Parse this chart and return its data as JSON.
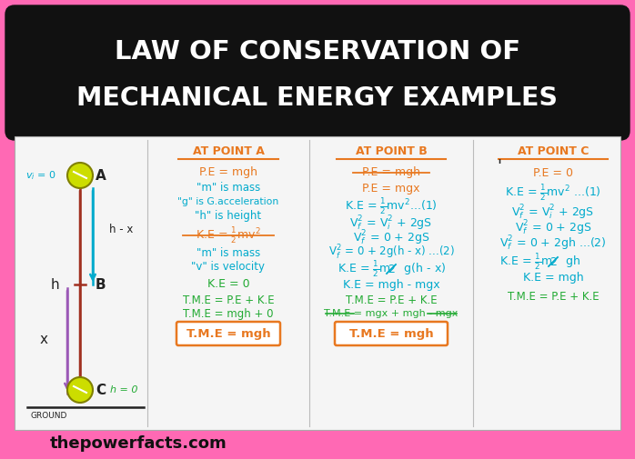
{
  "bg_color": "#ff69b4",
  "title_bg": "#111111",
  "title_line1": "LAW OF CONSERVATION OF",
  "title_line2": "MECHANICAL ENERGY EXAMPLES",
  "title_color": "#ffffff",
  "content_bg": "#f5f5f5",
  "watermark": "thepowerfacts.com",
  "orange": "#e87820",
  "green": "#22aa33",
  "cyan": "#00aacc",
  "purple": "#9b59b6",
  "red": "#c0392b",
  "dark_red": "#a03020",
  "ball_green": "#ccdd00",
  "dark": "#222222",
  "col_divider": "#bbbbbb",
  "fig_w": 6.98,
  "fig_h": 5.05,
  "dpi": 100
}
